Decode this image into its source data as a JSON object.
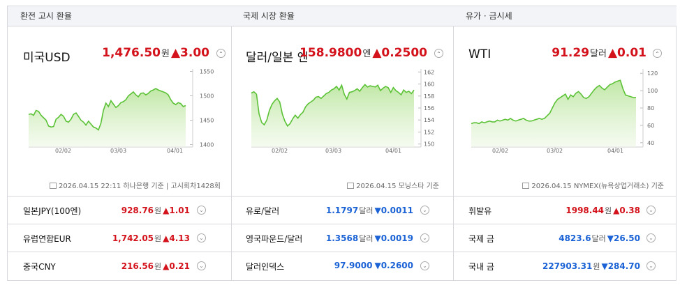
{
  "panels": [
    {
      "header": "환전 고시 환율",
      "main": {
        "title": "미국USD",
        "value": "1,476.50",
        "unit": "원",
        "arrow": "▲",
        "change": "3.00"
      },
      "note": "2026.04.15 22:11 하나은행 기준 | 고시회차1428회",
      "rows": [
        {
          "name": "일본JPY(100엔)",
          "value": "928.76",
          "unit": "원",
          "arrow": "▲",
          "change": "1.01"
        },
        {
          "name": "유럽연합EUR",
          "value": "1,742.05",
          "unit": "원",
          "arrow": "▲",
          "change": "4.13"
        },
        {
          "name": "중국CNY",
          "value": "216.56",
          "unit": "원",
          "arrow": "▲",
          "change": "0.21"
        }
      ]
    },
    {
      "header": "국제 시장 환율",
      "main": {
        "title": "달러/일본 엔",
        "value": "158.9800",
        "unit": "엔",
        "arrow": "▲",
        "change": "0.2500"
      },
      "note": "2026.04.15 모닝스타 기준",
      "rows": [
        {
          "name": "유로/달러",
          "value": "1.1797",
          "unit": "달러",
          "arrow": "▼",
          "change": "0.0011"
        },
        {
          "name": "영국파운드/달러",
          "value": "1.3568",
          "unit": "달러",
          "arrow": "▼",
          "change": "0.0019"
        },
        {
          "name": "달러인덱스",
          "value": "97.9000",
          "unit": "",
          "arrow": "▼",
          "change": "0.2600"
        }
      ]
    },
    {
      "header": "유가 · 금시세",
      "main": {
        "title": "WTI",
        "value": "91.29",
        "unit": "달러",
        "arrow": "▲",
        "change": "0.01"
      },
      "note": "2026.04.15 NYMEX(뉴욕상업거래소) 기준",
      "rows": [
        {
          "name": "휘발유",
          "value": "1998.44",
          "unit": "원",
          "arrow": "▲",
          "change": "0.38"
        },
        {
          "name": "국제 금",
          "value": "4823.6",
          "unit": "달러",
          "arrow": "▼",
          "change": "26.50"
        },
        {
          "name": "국내 금",
          "value": "227903.31",
          "unit": "원",
          "arrow": "▼",
          "change": "284.70"
        }
      ]
    }
  ],
  "chart_data": [
    {
      "type": "area",
      "x_ticks": [
        "02/02",
        "03/03",
        "04/01"
      ],
      "y_ticks": [
        1400,
        1450,
        1500,
        1550
      ],
      "ylim": [
        1395,
        1555
      ],
      "values": [
        1462,
        1463,
        1460,
        1470,
        1468,
        1460,
        1455,
        1450,
        1438,
        1436,
        1437,
        1452,
        1456,
        1462,
        1458,
        1448,
        1446,
        1452,
        1462,
        1465,
        1458,
        1450,
        1446,
        1440,
        1448,
        1442,
        1436,
        1434,
        1430,
        1444,
        1470,
        1485,
        1478,
        1490,
        1483,
        1476,
        1480,
        1486,
        1488,
        1492,
        1500,
        1504,
        1508,
        1502,
        1498,
        1505,
        1506,
        1502,
        1505,
        1510,
        1512,
        1515,
        1512,
        1510,
        1508,
        1506,
        1502,
        1492,
        1485,
        1482,
        1486,
        1484,
        1478,
        1480
      ],
      "color": "#5bc236"
    },
    {
      "type": "area",
      "x_ticks": [
        "02/02",
        "03/03",
        "04/01"
      ],
      "y_ticks": [
        150,
        152,
        154,
        156,
        158,
        160,
        162
      ],
      "ylim": [
        149.5,
        162.5
      ],
      "values": [
        158.5,
        158.7,
        158.3,
        155.0,
        153.6,
        153.2,
        154.0,
        155.6,
        156.6,
        157.2,
        157.6,
        157.0,
        155.0,
        153.8,
        153.0,
        153.4,
        154.2,
        154.8,
        154.3,
        154.9,
        155.3,
        156.2,
        156.7,
        157.0,
        157.3,
        157.8,
        157.9,
        157.6,
        158.0,
        158.4,
        158.6,
        159.0,
        159.2,
        159.6,
        159.0,
        159.8,
        158.3,
        157.5,
        158.6,
        158.7,
        158.9,
        159.2,
        158.8,
        159.4,
        159.9,
        159.5,
        159.7,
        159.6,
        159.5,
        159.8,
        158.9,
        159.3,
        159.6,
        159.4,
        158.6,
        159.4,
        158.9,
        158.6,
        158.2,
        159.0,
        158.6,
        158.8,
        158.4,
        159.0
      ],
      "color": "#5bc236"
    },
    {
      "type": "area",
      "x_ticks": [
        "02/02",
        "03/02",
        "04/01"
      ],
      "y_ticks": [
        40,
        60,
        80,
        100,
        120
      ],
      "ylim": [
        35,
        125
      ],
      "values": [
        62,
        63,
        63,
        62,
        64,
        63,
        64,
        65,
        64,
        64,
        66,
        65,
        66,
        67,
        66,
        68,
        66,
        65,
        66,
        67,
        68,
        66,
        65,
        65,
        66,
        67,
        68,
        67,
        68,
        71,
        74,
        80,
        86,
        90,
        92,
        94,
        96,
        90,
        95,
        93,
        97,
        99,
        96,
        92,
        91,
        93,
        97,
        101,
        104,
        106,
        103,
        101,
        104,
        107,
        108,
        110,
        111,
        112,
        102,
        95,
        94,
        93,
        92,
        92
      ],
      "color": "#5bc236"
    }
  ]
}
